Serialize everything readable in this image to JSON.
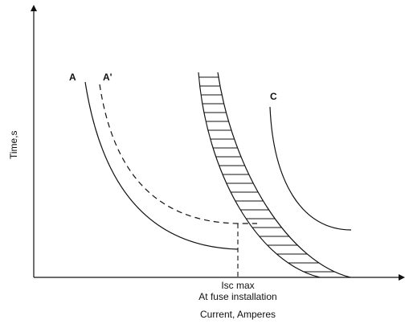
{
  "diagram": {
    "y_axis_label": "Time,s",
    "x_axis_label": "Current, Amperes",
    "marker_label_line1": "Isc max",
    "marker_label_line2": "At fuse installation",
    "curves": [
      {
        "label": "A",
        "style": "solid"
      },
      {
        "label": "A'",
        "style": "dashed"
      },
      {
        "label": "C",
        "style": "solid"
      }
    ],
    "band": {
      "style": "hatched"
    }
  },
  "colors": {
    "ink": "#111111",
    "background": "#ffffff"
  }
}
